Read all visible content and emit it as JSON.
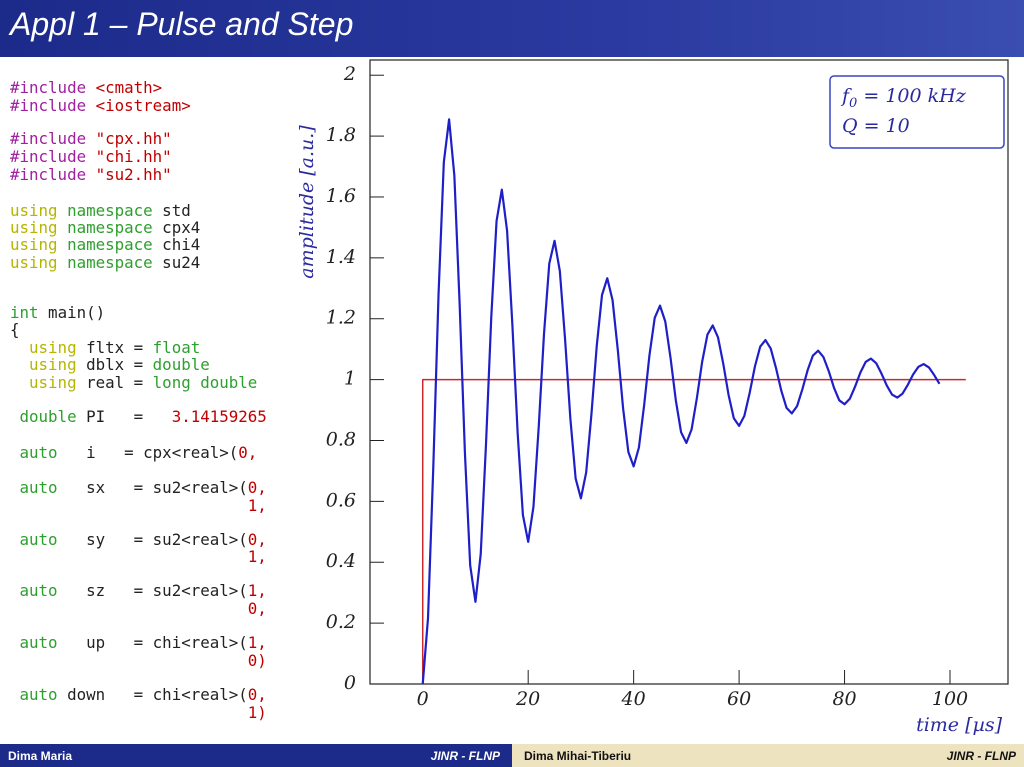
{
  "header": {
    "title": "Appl 1 – Pulse and Step"
  },
  "code": {
    "lines": [
      [
        {
          "t": "#include",
          "c": "#a020a0"
        },
        {
          "t": " <cmath>",
          "c": "#c00000"
        }
      ],
      [
        {
          "t": "#include",
          "c": "#a020a0"
        },
        {
          "t": " <iostream>",
          "c": "#c00000"
        }
      ],
      [
        {
          "t": "#include",
          "c": "#a020a0"
        },
        {
          "t": " \"cpx.hh\"",
          "c": "#c00000"
        }
      ],
      [
        {
          "t": "#include",
          "c": "#a020a0"
        },
        {
          "t": " \"chi.hh\"",
          "c": "#c00000"
        }
      ],
      [
        {
          "t": "#include",
          "c": "#a020a0"
        },
        {
          "t": " \"su2.hh\"",
          "c": "#c00000"
        }
      ],
      [
        {
          "t": "using",
          "c": "#b5b500"
        },
        {
          "t": " namespace",
          "c": "#2ca02c"
        },
        {
          "t": " std",
          "c": "#222222"
        }
      ],
      [
        {
          "t": "using",
          "c": "#b5b500"
        },
        {
          "t": " namespace",
          "c": "#2ca02c"
        },
        {
          "t": " cpx4",
          "c": "#222222"
        }
      ],
      [
        {
          "t": "using",
          "c": "#b5b500"
        },
        {
          "t": " namespace",
          "c": "#2ca02c"
        },
        {
          "t": " chi4",
          "c": "#222222"
        }
      ],
      [
        {
          "t": "using",
          "c": "#b5b500"
        },
        {
          "t": " namespace",
          "c": "#2ca02c"
        },
        {
          "t": " su24",
          "c": "#222222"
        }
      ],
      [
        {
          "t": "int",
          "c": "#2ca02c"
        },
        {
          "t": " main()",
          "c": "#222222"
        }
      ],
      [
        {
          "t": "{",
          "c": "#222222"
        }
      ],
      [
        {
          "t": "  using",
          "c": "#b5b500"
        },
        {
          "t": " fltx =",
          "c": "#222222"
        },
        {
          "t": " float",
          "c": "#2ca02c"
        }
      ],
      [
        {
          "t": "  using",
          "c": "#b5b500"
        },
        {
          "t": " dblx =",
          "c": "#222222"
        },
        {
          "t": " double",
          "c": "#2ca02c"
        }
      ],
      [
        {
          "t": "  using",
          "c": "#b5b500"
        },
        {
          "t": " real =",
          "c": "#222222"
        },
        {
          "t": " long double",
          "c": "#2ca02c"
        }
      ],
      [
        {
          "t": " double",
          "c": "#2ca02c"
        },
        {
          "t": " PI   =   ",
          "c": "#222222"
        },
        {
          "t": "3.14159265",
          "c": "#c00000"
        }
      ],
      [
        {
          "t": " auto",
          "c": "#2ca02c"
        },
        {
          "t": "   i   = cpx<real>(",
          "c": "#222222"
        },
        {
          "t": "0,",
          "c": "#c00000"
        }
      ],
      [
        {
          "t": " auto",
          "c": "#2ca02c"
        },
        {
          "t": "   sx   = su2<real>(",
          "c": "#222222"
        },
        {
          "t": "0,",
          "c": "#c00000"
        }
      ],
      [
        {
          "t": "                         1,",
          "c": "#c00000"
        }
      ],
      [
        {
          "t": " auto",
          "c": "#2ca02c"
        },
        {
          "t": "   sy   = su2<real>(",
          "c": "#222222"
        },
        {
          "t": "0,",
          "c": "#c00000"
        }
      ],
      [
        {
          "t": "                         1,",
          "c": "#c00000"
        }
      ],
      [
        {
          "t": " auto",
          "c": "#2ca02c"
        },
        {
          "t": "   sz   = su2<real>(",
          "c": "#222222"
        },
        {
          "t": "1,",
          "c": "#c00000"
        }
      ],
      [
        {
          "t": "                         0,",
          "c": "#c00000"
        }
      ],
      [
        {
          "t": " auto",
          "c": "#2ca02c"
        },
        {
          "t": "   up   = chi<real>(",
          "c": "#222222"
        },
        {
          "t": "1,",
          "c": "#c00000"
        }
      ],
      [
        {
          "t": "                         0)",
          "c": "#c00000"
        }
      ],
      [
        {
          "t": " auto",
          "c": "#2ca02c"
        },
        {
          "t": " down   = chi<real>(",
          "c": "#222222"
        },
        {
          "t": "0,",
          "c": "#c00000"
        }
      ],
      [
        {
          "t": "                         1)",
          "c": "#c00000"
        }
      ]
    ]
  },
  "chart_data": {
    "type": "line",
    "y_label": "amplitude [a.u.]",
    "x_label": "time [µs]",
    "annotations": [
      {
        "text": "f",
        "sub": "0",
        "rest": " = 100 kHz"
      },
      {
        "text": "Q = 10"
      }
    ],
    "xlim": [
      -10,
      111
    ],
    "ylim": [
      0,
      2.05
    ],
    "xticks": [
      0,
      20,
      40,
      60,
      80,
      100
    ],
    "yticks": [
      0,
      0.2,
      0.4,
      0.6,
      0.8,
      1,
      1.2,
      1.4,
      1.6,
      1.8,
      2
    ],
    "series": [
      {
        "color": "#cc2a2a",
        "x": [
          0,
          0,
          103
        ],
        "values": [
          0,
          1,
          1
        ]
      },
      {
        "color": "#1f1fc8",
        "x": [
          0,
          1,
          2,
          3,
          4,
          5,
          6,
          7,
          8,
          9,
          10,
          11,
          12,
          13,
          14,
          15,
          16,
          17,
          18,
          19,
          20,
          21,
          22,
          23,
          24,
          25,
          26,
          27,
          28,
          29,
          30,
          31,
          32,
          33,
          34,
          35,
          36,
          37,
          38,
          39,
          40,
          41,
          42,
          43,
          44,
          45,
          46,
          47,
          48,
          49,
          50,
          51,
          52,
          53,
          54,
          55,
          56,
          57,
          58,
          59,
          60,
          61,
          62,
          63,
          64,
          65,
          66,
          67,
          68,
          69,
          70,
          71,
          72,
          73,
          74,
          75,
          76,
          77,
          78,
          79,
          80,
          81,
          82,
          83,
          84,
          85,
          86,
          87,
          88,
          89,
          90,
          91,
          92,
          93,
          94,
          95,
          96,
          97,
          98
        ],
        "values": [
          0,
          0.216,
          0.71,
          1.281,
          1.714,
          1.855,
          1.67,
          1.248,
          0.76,
          0.39,
          0.27,
          0.427,
          0.788,
          1.205,
          1.521,
          1.624,
          1.489,
          1.181,
          0.825,
          0.555,
          0.467,
          0.582,
          0.845,
          1.15,
          1.381,
          1.456,
          1.357,
          1.132,
          0.872,
          0.675,
          0.61,
          0.695,
          0.887,
          1.11,
          1.278,
          1.333,
          1.261,
          1.097,
          0.906,
          0.762,
          0.715,
          0.777,
          0.917,
          1.08,
          1.203,
          1.243,
          1.191,
          1.071,
          0.932,
          0.827,
          0.792,
          0.837,
          0.94,
          1.059,
          1.148,
          1.178,
          1.139,
          1.052,
          0.95,
          0.873,
          0.848,
          0.881,
          0.956,
          1.043,
          1.108,
          1.13,
          1.102,
          1.038,
          0.964,
          0.907,
          0.889,
          0.913,
          0.968,
          1.031,
          1.079,
          1.095,
          1.074,
          1.028,
          0.973,
          0.932,
          0.919,
          0.937,
          0.977,
          1.023,
          1.058,
          1.069,
          1.054,
          1.02,
          0.981,
          0.951,
          0.941,
          0.954,
          0.983,
          1.017,
          1.042,
          1.051,
          1.04,
          1.015,
          0.986
        ]
      }
    ]
  },
  "footer": {
    "left_name": "Dima Maria",
    "left_org": "JINR - FLNP",
    "right_name": "Dima Mihai-Tiberiu",
    "right_org": "JINR - FLNP"
  }
}
